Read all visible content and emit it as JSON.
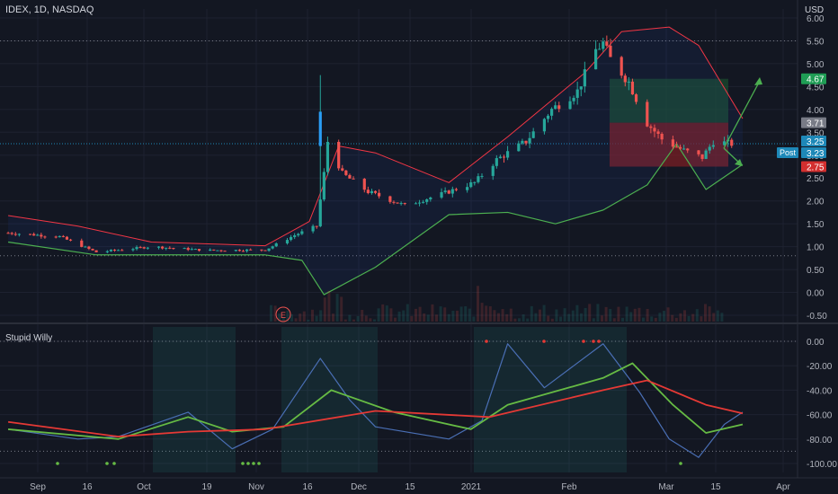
{
  "symbol_header": "IDEX, 1D, NASDAQ",
  "currency": "USD",
  "colors": {
    "background": "#131722",
    "grid": "#1e2230",
    "up": "#26a69a",
    "down": "#ef5350",
    "bb_upper": "#f23645",
    "bb_lower": "#4caf50",
    "basis": "#2962ff",
    "long_target_zone": "#1b4d2e",
    "long_stop_zone": "#7a1f24",
    "wr": "#4a6fb5",
    "signal": "#66bb44",
    "slow": "#e53935",
    "arrow": "#4caf50"
  },
  "price_scale": {
    "ticks": [
      "6.00",
      "5.50",
      "5.00",
      "4.50",
      "4.00",
      "3.50",
      "3.00",
      "2.50",
      "2.00",
      "1.50",
      "1.00",
      "0.50",
      "0.00",
      "-0.50"
    ],
    "min": -0.5,
    "max": 6.0,
    "badges": [
      {
        "text": "4.67",
        "value": 4.67,
        "color": "#1f9d55",
        "textColor": "#ffffff"
      },
      {
        "text": "3.71",
        "value": 3.71,
        "color": "#787b86",
        "textColor": "#ffffff"
      },
      {
        "text": "3.25",
        "value": 3.25,
        "color": "#1e88b8",
        "textColor": "#ffffff"
      },
      {
        "text": "3.23",
        "value": 3.23,
        "color": "#1e88b8",
        "textColor": "#ffffff"
      },
      {
        "text": "2.75",
        "value": 2.75,
        "color": "#d32f2f",
        "textColor": "#ffffff"
      }
    ],
    "post_label": "Post",
    "current_price": 3.25
  },
  "earnings_marker": "E",
  "indicator": {
    "name": "Stupid Willy",
    "ticks": [
      "0.00",
      "-20.00",
      "-40.00",
      "-60.00",
      "-80.00",
      "-100.00"
    ],
    "min": -105,
    "max": 5
  },
  "time_axis": [
    "Sep",
    "16",
    "Oct",
    "19",
    "Nov",
    "16",
    "Dec",
    "15",
    "2021",
    "Feb",
    "Mar",
    "15",
    "Apr"
  ],
  "chart_data": [
    {
      "type": "candlestick",
      "title": "IDEX, 1D, NASDAQ",
      "ylim": [
        -0.5,
        6.0
      ],
      "x_range_days": [
        "2020-08-31",
        "2021-04-01"
      ],
      "price_points": [
        [
          "2020-09-01",
          1.3
        ],
        [
          "2020-09-15",
          1.22
        ],
        [
          "2020-09-25",
          0.88
        ],
        [
          "2020-10-10",
          1.0
        ],
        [
          "2020-10-25",
          0.92
        ],
        [
          "2020-11-10",
          0.93
        ],
        [
          "2020-11-18",
          1.25
        ],
        [
          "2020-11-24",
          1.45
        ],
        [
          "2020-11-26",
          2.6
        ],
        [
          "2020-11-27",
          3.3
        ],
        [
          "2020-12-01",
          2.6
        ],
        [
          "2020-12-08",
          2.2
        ],
        [
          "2020-12-18",
          1.9
        ],
        [
          "2020-12-28",
          2.15
        ],
        [
          "2021-01-06",
          2.4
        ],
        [
          "2021-01-12",
          2.9
        ],
        [
          "2021-01-20",
          3.3
        ],
        [
          "2021-01-27",
          4.0
        ],
        [
          "2021-02-03",
          4.4
        ],
        [
          "2021-02-08",
          5.3
        ],
        [
          "2021-02-10",
          5.45
        ],
        [
          "2021-02-12",
          5.1
        ],
        [
          "2021-02-17",
          4.6
        ],
        [
          "2021-02-22",
          3.7
        ],
        [
          "2021-02-26",
          3.35
        ],
        [
          "2021-03-04",
          3.1
        ],
        [
          "2021-03-09",
          2.95
        ],
        [
          "2021-03-12",
          3.3
        ],
        [
          "2021-03-17",
          3.25
        ]
      ],
      "bollinger_upper": [
        [
          "2020-09-01",
          1.68
        ],
        [
          "2020-09-20",
          1.45
        ],
        [
          "2020-10-10",
          1.1
        ],
        [
          "2020-11-10",
          1.02
        ],
        [
          "2020-11-22",
          1.55
        ],
        [
          "2020-11-30",
          3.2
        ],
        [
          "2020-12-10",
          3.05
        ],
        [
          "2020-12-30",
          2.4
        ],
        [
          "2021-01-15",
          3.4
        ],
        [
          "2021-02-05",
          4.8
        ],
        [
          "2021-02-15",
          5.7
        ],
        [
          "2021-02-28",
          5.8
        ],
        [
          "2021-03-08",
          5.4
        ],
        [
          "2021-03-20",
          3.8
        ]
      ],
      "bollinger_lower": [
        [
          "2020-09-01",
          1.1
        ],
        [
          "2020-09-25",
          0.82
        ],
        [
          "2020-10-20",
          0.82
        ],
        [
          "2020-11-10",
          0.82
        ],
        [
          "2020-11-20",
          0.7
        ],
        [
          "2020-11-26",
          -0.05
        ],
        [
          "2020-12-10",
          0.55
        ],
        [
          "2020-12-30",
          1.7
        ],
        [
          "2021-01-15",
          1.75
        ],
        [
          "2021-01-28",
          1.5
        ],
        [
          "2021-02-10",
          1.8
        ],
        [
          "2021-02-22",
          2.35
        ],
        [
          "2021-03-02",
          3.25
        ],
        [
          "2021-03-10",
          2.25
        ],
        [
          "2021-03-20",
          2.8
        ]
      ],
      "trade": {
        "entry": 3.71,
        "target": 4.67,
        "stop": 2.75,
        "current": 3.23
      }
    },
    {
      "type": "line",
      "title": "Stupid Willy",
      "ylim": [
        -105,
        5
      ],
      "series": [
        {
          "name": "",
          "points": [
            [
              "2020-09-01",
              -72
            ],
            [
              "2020-09-20",
              -80
            ],
            [
              "2020-10-01",
              -78
            ],
            [
              "2020-10-20",
              -58
            ],
            [
              "2020-11-01",
              -88
            ],
            [
              "2020-11-12",
              -72
            ],
            [
              "2020-11-25",
              -14
            ],
            [
              "2020-12-03",
              -48
            ],
            [
              "2020-12-10",
              -70
            ],
            [
              "2020-12-30",
              -80
            ],
            [
              "2021-01-08",
              -65
            ],
            [
              "2021-01-15",
              -2
            ],
            [
              "2021-01-25",
              -38
            ],
            [
              "2021-02-02",
              -20
            ],
            [
              "2021-02-10",
              -2
            ],
            [
              "2021-02-20",
              -42
            ],
            [
              "2021-02-28",
              -80
            ],
            [
              "2021-03-08",
              -95
            ],
            [
              "2021-03-15",
              -68
            ],
            [
              "2021-03-20",
              -58
            ]
          ]
        },
        {
          "name": "",
          "points": [
            [
              "2020-09-01",
              -72
            ],
            [
              "2020-10-01",
              -80
            ],
            [
              "2020-10-20",
              -62
            ],
            [
              "2020-11-01",
              -74
            ],
            [
              "2020-11-15",
              -70
            ],
            [
              "2020-11-28",
              -40
            ],
            [
              "2020-12-15",
              -58
            ],
            [
              "2021-01-05",
              -72
            ],
            [
              "2021-01-15",
              -52
            ],
            [
              "2021-02-10",
              -30
            ],
            [
              "2021-02-18",
              -18
            ],
            [
              "2021-03-01",
              -52
            ],
            [
              "2021-03-10",
              -75
            ],
            [
              "2021-03-20",
              -68
            ]
          ]
        },
        {
          "name": "",
          "points": [
            [
              "2020-09-01",
              -66
            ],
            [
              "2020-10-01",
              -78
            ],
            [
              "2020-10-20",
              -74
            ],
            [
              "2020-11-10",
              -72
            ],
            [
              "2020-12-10",
              -57
            ],
            [
              "2021-01-10",
              -62
            ],
            [
              "2021-02-10",
              -40
            ],
            [
              "2021-02-22",
              -32
            ],
            [
              "2021-03-10",
              -52
            ],
            [
              "2021-03-20",
              -59
            ]
          ]
        }
      ]
    }
  ]
}
